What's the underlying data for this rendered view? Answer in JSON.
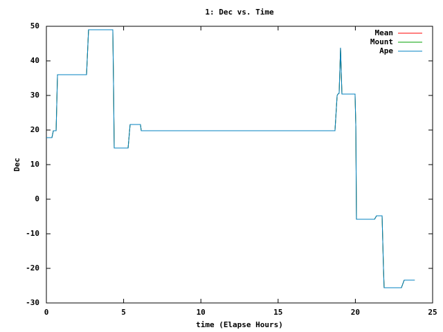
{
  "chart_data": {
    "type": "line",
    "title": "1: Dec vs. Time",
    "xlabel": "time (Elapse Hours)",
    "ylabel": "Dec",
    "xlim": [
      0,
      25
    ],
    "xticks": [
      0,
      5,
      10,
      15,
      20,
      25
    ],
    "ylim": [
      -30,
      50
    ],
    "yticks": [
      -30,
      -20,
      -10,
      0,
      10,
      20,
      30,
      40,
      50
    ],
    "legend": "top-right",
    "x": [
      0,
      0.36,
      0.45,
      0.63,
      0.72,
      2.6,
      2.73,
      4.3,
      4.35,
      4.39,
      5.29,
      5.42,
      6.09,
      6.14,
      18.68,
      18.82,
      18.91,
      18.95,
      19.04,
      19.13,
      19.98,
      20.03,
      20.07,
      21.24,
      21.37,
      21.73,
      21.82,
      21.86,
      22.98,
      23.16,
      23.84
    ],
    "series": [
      {
        "name": "Mean",
        "color": "#ff0000",
        "values": [
          17.8,
          17.8,
          19.8,
          19.8,
          36,
          36,
          49,
          49,
          32,
          14.8,
          14.8,
          21.6,
          21.6,
          19.8,
          19.8,
          30,
          30.6,
          30.6,
          43.8,
          30.4,
          30.4,
          21,
          -5.8,
          -5.8,
          -4.8,
          -4.8,
          -20,
          -25.6,
          -25.6,
          -23.4,
          -23.4
        ]
      },
      {
        "name": "Mount",
        "color": "#00a000",
        "values": [
          17.8,
          17.8,
          19.8,
          19.8,
          36,
          36,
          49,
          49,
          32,
          14.8,
          14.8,
          21.6,
          21.6,
          19.8,
          19.8,
          30,
          30.6,
          30.6,
          43.8,
          30.4,
          30.4,
          21,
          -5.8,
          -5.8,
          -4.8,
          -4.8,
          -20,
          -25.6,
          -25.6,
          -23.4,
          -23.4
        ]
      },
      {
        "name": "Ape",
        "color": "#0080c0",
        "values": [
          17.8,
          17.8,
          19.8,
          19.8,
          36,
          36,
          49,
          49,
          32,
          14.8,
          14.8,
          21.6,
          21.6,
          19.8,
          19.8,
          30,
          30.6,
          30.6,
          43.8,
          30.4,
          30.4,
          21,
          -5.8,
          -5.8,
          -4.8,
          -4.8,
          -20,
          -25.6,
          -25.6,
          -23.4,
          -23.4
        ]
      }
    ]
  }
}
